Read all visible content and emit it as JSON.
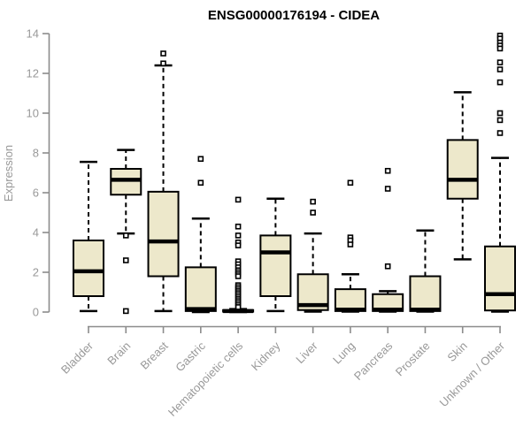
{
  "chart_data": {
    "type": "boxplot",
    "title": "ENSG00000176194 - CIDEA",
    "ylabel": "Expression",
    "xlabel": "",
    "ylim": [
      0,
      14
    ],
    "yticks": [
      0,
      2,
      4,
      6,
      8,
      10,
      12,
      14
    ],
    "grid": false,
    "legend": "none",
    "categories": [
      "Bladder",
      "Brain",
      "Breast",
      "Gastric",
      "Hematopoietic cells",
      "Kidney",
      "Liver",
      "Lung",
      "Pancreas",
      "Prostate",
      "Skin",
      "Unknown / Other"
    ],
    "boxes": [
      {
        "category": "Bladder",
        "low": 0.05,
        "q1": 0.8,
        "median": 2.05,
        "q3": 3.6,
        "high": 7.55,
        "outliers": []
      },
      {
        "category": "Brain",
        "low": 3.95,
        "q1": 5.9,
        "median": 6.65,
        "q3": 7.2,
        "high": 8.15,
        "outliers": [
          3.85,
          2.6,
          0.05
        ]
      },
      {
        "category": "Breast",
        "low": 0.05,
        "q1": 1.8,
        "median": 3.55,
        "q3": 6.05,
        "high": 12.4,
        "outliers": [
          13.0,
          12.5
        ]
      },
      {
        "category": "Gastric",
        "low": 0.0,
        "q1": 0.05,
        "median": 0.15,
        "q3": 2.25,
        "high": 4.7,
        "outliers": [
          7.7,
          6.5
        ]
      },
      {
        "category": "Hematopoietic cells",
        "low": 0.0,
        "q1": 0.02,
        "median": 0.05,
        "q3": 0.1,
        "high": 0.15,
        "outliers": [
          5.65,
          4.3,
          3.85,
          3.5,
          3.35,
          2.55,
          2.4,
          2.25,
          2.1,
          2.0,
          1.9,
          1.8,
          1.35,
          1.25,
          1.15,
          1.05,
          0.95,
          0.85,
          0.75,
          0.65,
          0.55,
          0.45,
          0.35,
          0.25
        ]
      },
      {
        "category": "Kidney",
        "low": 0.05,
        "q1": 0.8,
        "median": 3.0,
        "q3": 3.85,
        "high": 5.7,
        "outliers": []
      },
      {
        "category": "Liver",
        "low": 0.02,
        "q1": 0.1,
        "median": 0.35,
        "q3": 1.9,
        "high": 3.95,
        "outliers": [
          5.55,
          5.0
        ]
      },
      {
        "category": "Lung",
        "low": 0.02,
        "q1": 0.05,
        "median": 0.12,
        "q3": 1.15,
        "high": 1.9,
        "outliers": [
          6.5,
          3.75,
          3.6,
          3.4
        ]
      },
      {
        "category": "Pancreas",
        "low": 0.02,
        "q1": 0.05,
        "median": 0.12,
        "q3": 0.9,
        "high": 1.05,
        "outliers": [
          7.1,
          6.2,
          2.3
        ]
      },
      {
        "category": "Prostate",
        "low": 0.02,
        "q1": 0.05,
        "median": 0.12,
        "q3": 1.8,
        "high": 4.1,
        "outliers": []
      },
      {
        "category": "Skin",
        "low": 2.65,
        "q1": 5.7,
        "median": 6.65,
        "q3": 8.65,
        "high": 11.05,
        "outliers": []
      },
      {
        "category": "Unknown / Other",
        "low": 0.02,
        "q1": 0.08,
        "median": 0.9,
        "q3": 3.3,
        "high": 7.75,
        "outliers": [
          13.9,
          13.75,
          13.55,
          13.4,
          13.25,
          12.55,
          12.2,
          11.55,
          10.0,
          9.65,
          9.0
        ]
      }
    ],
    "colors": {
      "box_fill": "#EDE8CB",
      "box_border": "#000000",
      "median": "#000000",
      "whisker": "#000000",
      "outlier": "#000000",
      "axis": "#8C8C8C",
      "tick_label": "#999999",
      "title": "#000000",
      "background": "#FFFFFF"
    }
  }
}
